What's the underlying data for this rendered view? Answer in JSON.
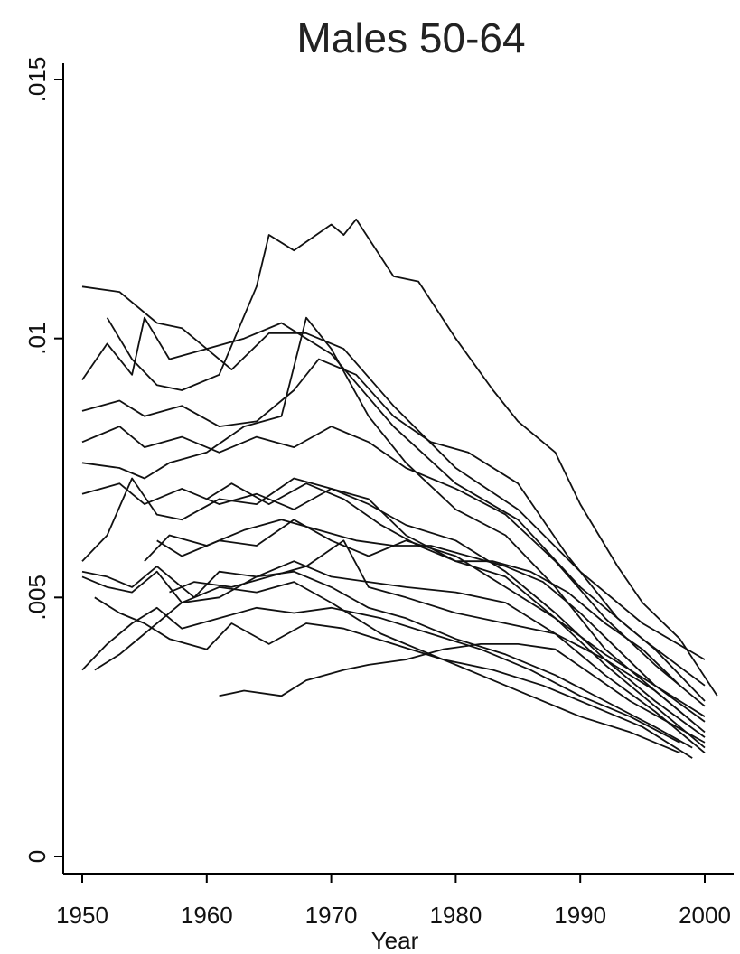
{
  "chart_data": {
    "type": "line",
    "title": "Males 50-64",
    "xlabel": "Year",
    "ylabel": "",
    "xlim": [
      1950,
      2000
    ],
    "ylim": [
      0,
      0.015
    ],
    "grid": false,
    "legend": "none",
    "line_color": "#111111",
    "x_ticks": [
      {
        "value": 1950,
        "label": "1950"
      },
      {
        "value": 1960,
        "label": "1960"
      },
      {
        "value": 1970,
        "label": "1970"
      },
      {
        "value": 1980,
        "label": "1980"
      },
      {
        "value": 1990,
        "label": "1990"
      },
      {
        "value": 2000,
        "label": "2000"
      }
    ],
    "y_ticks": [
      {
        "value": 0,
        "label": "0"
      },
      {
        "value": 0.005,
        "label": ".005"
      },
      {
        "value": 0.01,
        "label": ".01"
      },
      {
        "value": 0.015,
        "label": ".015"
      }
    ],
    "series": [
      {
        "points": [
          [
            1950,
            0.011
          ],
          [
            1953,
            0.0109
          ],
          [
            1956,
            0.0103
          ],
          [
            1958,
            0.0102
          ],
          [
            1962,
            0.0094
          ],
          [
            1965,
            0.0101
          ],
          [
            1968,
            0.0101
          ],
          [
            1971,
            0.0098
          ],
          [
            1975,
            0.0087
          ],
          [
            1980,
            0.0075
          ],
          [
            1985,
            0.0067
          ],
          [
            1990,
            0.0055
          ],
          [
            1995,
            0.0045
          ],
          [
            2000,
            0.0038
          ]
        ]
      },
      {
        "points": [
          [
            1950,
            0.0092
          ],
          [
            1952,
            0.0099
          ],
          [
            1954,
            0.0093
          ],
          [
            1955,
            0.0104
          ],
          [
            1957,
            0.0096
          ],
          [
            1960,
            0.0098
          ],
          [
            1963,
            0.01
          ],
          [
            1966,
            0.0103
          ],
          [
            1968,
            0.01
          ],
          [
            1970,
            0.0097
          ],
          [
            1975,
            0.0083
          ],
          [
            1980,
            0.0072
          ],
          [
            1985,
            0.0065
          ],
          [
            1990,
            0.0052
          ],
          [
            1995,
            0.0042
          ],
          [
            2000,
            0.0033
          ]
        ]
      },
      {
        "points": [
          [
            1952,
            0.0104
          ],
          [
            1954,
            0.0096
          ],
          [
            1956,
            0.0091
          ],
          [
            1958,
            0.009
          ],
          [
            1961,
            0.0093
          ],
          [
            1964,
            0.011
          ],
          [
            1965,
            0.012
          ],
          [
            1967,
            0.0117
          ],
          [
            1970,
            0.0122
          ],
          [
            1971,
            0.012
          ],
          [
            1972,
            0.0123
          ],
          [
            1975,
            0.0112
          ],
          [
            1977,
            0.0111
          ],
          [
            1980,
            0.01
          ],
          [
            1983,
            0.009
          ],
          [
            1985,
            0.0084
          ],
          [
            1988,
            0.0078
          ],
          [
            1990,
            0.0068
          ],
          [
            1993,
            0.0056
          ],
          [
            1995,
            0.0049
          ],
          [
            1998,
            0.0042
          ],
          [
            2001,
            0.0031
          ]
        ]
      },
      {
        "points": [
          [
            1950,
            0.0086
          ],
          [
            1953,
            0.0088
          ],
          [
            1955,
            0.0085
          ],
          [
            1958,
            0.0087
          ],
          [
            1961,
            0.0083
          ],
          [
            1964,
            0.0084
          ],
          [
            1967,
            0.009
          ],
          [
            1969,
            0.0096
          ],
          [
            1972,
            0.0093
          ],
          [
            1975,
            0.0085
          ],
          [
            1978,
            0.008
          ],
          [
            1981,
            0.0078
          ],
          [
            1985,
            0.0072
          ],
          [
            1989,
            0.0058
          ],
          [
            1993,
            0.0046
          ],
          [
            1996,
            0.004
          ],
          [
            2000,
            0.003
          ]
        ]
      },
      {
        "points": [
          [
            1950,
            0.008
          ],
          [
            1953,
            0.0083
          ],
          [
            1955,
            0.0079
          ],
          [
            1958,
            0.0081
          ],
          [
            1961,
            0.0078
          ],
          [
            1964,
            0.0081
          ],
          [
            1967,
            0.0079
          ],
          [
            1970,
            0.0083
          ],
          [
            1973,
            0.008
          ],
          [
            1976,
            0.0075
          ],
          [
            1980,
            0.0071
          ],
          [
            1984,
            0.0066
          ],
          [
            1988,
            0.0057
          ],
          [
            1992,
            0.0046
          ],
          [
            1996,
            0.0037
          ],
          [
            2000,
            0.0029
          ]
        ]
      },
      {
        "points": [
          [
            1950,
            0.0076
          ],
          [
            1953,
            0.0075
          ],
          [
            1955,
            0.0073
          ],
          [
            1957,
            0.0076
          ],
          [
            1960,
            0.0078
          ],
          [
            1963,
            0.0083
          ],
          [
            1966,
            0.0085
          ],
          [
            1968,
            0.0104
          ],
          [
            1970,
            0.0098
          ],
          [
            1973,
            0.0085
          ],
          [
            1976,
            0.0076
          ],
          [
            1980,
            0.0067
          ],
          [
            1984,
            0.0062
          ],
          [
            1988,
            0.0052
          ],
          [
            1992,
            0.004
          ],
          [
            1996,
            0.0032
          ],
          [
            2000,
            0.0024
          ]
        ]
      },
      {
        "points": [
          [
            1950,
            0.007
          ],
          [
            1953,
            0.0072
          ],
          [
            1955,
            0.0068
          ],
          [
            1958,
            0.0071
          ],
          [
            1961,
            0.0068
          ],
          [
            1964,
            0.007
          ],
          [
            1967,
            0.0067
          ],
          [
            1970,
            0.0071
          ],
          [
            1973,
            0.0068
          ],
          [
            1976,
            0.0064
          ],
          [
            1980,
            0.0061
          ],
          [
            1984,
            0.0055
          ],
          [
            1988,
            0.0047
          ],
          [
            1992,
            0.0038
          ],
          [
            1996,
            0.003
          ],
          [
            2000,
            0.0023
          ]
        ]
      },
      {
        "points": [
          [
            1950,
            0.0057
          ],
          [
            1952,
            0.0062
          ],
          [
            1954,
            0.0073
          ],
          [
            1956,
            0.0066
          ],
          [
            1958,
            0.0065
          ],
          [
            1961,
            0.0069
          ],
          [
            1964,
            0.0068
          ],
          [
            1967,
            0.0073
          ],
          [
            1970,
            0.0071
          ],
          [
            1973,
            0.0069
          ],
          [
            1976,
            0.0062
          ],
          [
            1980,
            0.0057
          ],
          [
            1984,
            0.0054
          ],
          [
            1988,
            0.0046
          ],
          [
            1992,
            0.0037
          ],
          [
            1996,
            0.0029
          ],
          [
            2000,
            0.0021
          ]
        ]
      },
      {
        "points": [
          [
            1950,
            0.0055
          ],
          [
            1952,
            0.0054
          ],
          [
            1954,
            0.0052
          ],
          [
            1956,
            0.0056
          ],
          [
            1959,
            0.005
          ],
          [
            1961,
            0.0055
          ],
          [
            1964,
            0.0054
          ],
          [
            1967,
            0.0057
          ],
          [
            1970,
            0.0054
          ],
          [
            1973,
            0.0053
          ],
          [
            1976,
            0.0052
          ],
          [
            1980,
            0.0051
          ],
          [
            1984,
            0.0049
          ],
          [
            1988,
            0.0043
          ],
          [
            1992,
            0.0035
          ],
          [
            1996,
            0.0028
          ],
          [
            2000,
            0.002
          ]
        ]
      },
      {
        "points": [
          [
            1950,
            0.0054
          ],
          [
            1952,
            0.0052
          ],
          [
            1954,
            0.0051
          ],
          [
            1956,
            0.0055
          ],
          [
            1958,
            0.0049
          ],
          [
            1961,
            0.0052
          ],
          [
            1964,
            0.0051
          ],
          [
            1967,
            0.0053
          ],
          [
            1970,
            0.0049
          ],
          [
            1974,
            0.0043
          ],
          [
            1978,
            0.0039
          ],
          [
            1982,
            0.0035
          ],
          [
            1986,
            0.0031
          ],
          [
            1990,
            0.0027
          ],
          [
            1994,
            0.0024
          ],
          [
            1998,
            0.002
          ]
        ]
      },
      {
        "points": [
          [
            1951,
            0.0036
          ],
          [
            1953,
            0.0039
          ],
          [
            1955,
            0.0043
          ],
          [
            1958,
            0.0049
          ],
          [
            1961,
            0.005
          ],
          [
            1964,
            0.0054
          ],
          [
            1967,
            0.0055
          ],
          [
            1970,
            0.0052
          ],
          [
            1973,
            0.0048
          ],
          [
            1976,
            0.0046
          ],
          [
            1980,
            0.0042
          ],
          [
            1984,
            0.0039
          ],
          [
            1988,
            0.0035
          ],
          [
            1992,
            0.003
          ],
          [
            1996,
            0.0025
          ],
          [
            1999,
            0.0021
          ]
        ]
      },
      {
        "points": [
          [
            1950,
            0.0036
          ],
          [
            1952,
            0.0041
          ],
          [
            1954,
            0.0045
          ],
          [
            1956,
            0.0048
          ],
          [
            1958,
            0.0044
          ],
          [
            1961,
            0.0046
          ],
          [
            1964,
            0.0048
          ],
          [
            1967,
            0.0047
          ],
          [
            1970,
            0.0048
          ],
          [
            1974,
            0.0046
          ],
          [
            1978,
            0.0043
          ],
          [
            1982,
            0.004
          ],
          [
            1986,
            0.0036
          ],
          [
            1990,
            0.0031
          ],
          [
            1994,
            0.0027
          ],
          [
            1998,
            0.0022
          ]
        ]
      },
      {
        "points": [
          [
            1951,
            0.005
          ],
          [
            1953,
            0.0047
          ],
          [
            1955,
            0.0045
          ],
          [
            1957,
            0.0042
          ],
          [
            1960,
            0.004
          ],
          [
            1962,
            0.0045
          ],
          [
            1965,
            0.0041
          ],
          [
            1968,
            0.0045
          ],
          [
            1971,
            0.0044
          ],
          [
            1975,
            0.0041
          ],
          [
            1979,
            0.0038
          ],
          [
            1983,
            0.0036
          ],
          [
            1987,
            0.0033
          ],
          [
            1991,
            0.0029
          ],
          [
            1995,
            0.0025
          ],
          [
            1999,
            0.0019
          ]
        ]
      },
      {
        "points": [
          [
            1961,
            0.0031
          ],
          [
            1963,
            0.0032
          ],
          [
            1966,
            0.0031
          ],
          [
            1968,
            0.0034
          ],
          [
            1971,
            0.0036
          ],
          [
            1973,
            0.0037
          ],
          [
            1976,
            0.0038
          ],
          [
            1979,
            0.004
          ],
          [
            1982,
            0.0041
          ],
          [
            1985,
            0.0041
          ],
          [
            1988,
            0.004
          ],
          [
            1991,
            0.0035
          ],
          [
            1994,
            0.003
          ],
          [
            1997,
            0.0026
          ],
          [
            2000,
            0.0022
          ]
        ]
      },
      {
        "points": [
          [
            1955,
            0.0057
          ],
          [
            1957,
            0.0062
          ],
          [
            1960,
            0.006
          ],
          [
            1963,
            0.0063
          ],
          [
            1966,
            0.0065
          ],
          [
            1969,
            0.0063
          ],
          [
            1972,
            0.0061
          ],
          [
            1975,
            0.006
          ],
          [
            1978,
            0.006
          ],
          [
            1981,
            0.0058
          ],
          [
            1984,
            0.0056
          ],
          [
            1987,
            0.0053
          ],
          [
            1990,
            0.0047
          ],
          [
            1993,
            0.004
          ],
          [
            1996,
            0.0033
          ],
          [
            2000,
            0.0026
          ]
        ]
      },
      {
        "points": [
          [
            1956,
            0.0061
          ],
          [
            1958,
            0.0058
          ],
          [
            1961,
            0.0061
          ],
          [
            1964,
            0.006
          ],
          [
            1967,
            0.0065
          ],
          [
            1970,
            0.0061
          ],
          [
            1973,
            0.0058
          ],
          [
            1976,
            0.0061
          ],
          [
            1980,
            0.0058
          ],
          [
            1984,
            0.0052
          ],
          [
            1988,
            0.0046
          ],
          [
            1992,
            0.0039
          ],
          [
            1996,
            0.0033
          ],
          [
            2000,
            0.0027
          ]
        ]
      },
      {
        "points": [
          [
            1957,
            0.0051
          ],
          [
            1959,
            0.0053
          ],
          [
            1962,
            0.0052
          ],
          [
            1965,
            0.0054
          ],
          [
            1968,
            0.0056
          ],
          [
            1971,
            0.0061
          ],
          [
            1973,
            0.0052
          ],
          [
            1976,
            0.005
          ],
          [
            1980,
            0.0047
          ],
          [
            1984,
            0.0045
          ],
          [
            1988,
            0.0043
          ],
          [
            1992,
            0.0038
          ],
          [
            1996,
            0.0032
          ],
          [
            1999,
            0.0026
          ]
        ]
      },
      {
        "points": [
          [
            1960,
            0.0069
          ],
          [
            1962,
            0.0072
          ],
          [
            1965,
            0.0068
          ],
          [
            1968,
            0.0072
          ],
          [
            1971,
            0.0069
          ],
          [
            1974,
            0.0064
          ],
          [
            1977,
            0.006
          ],
          [
            1980,
            0.0057
          ],
          [
            1983,
            0.0057
          ],
          [
            1986,
            0.0055
          ],
          [
            1989,
            0.0051
          ],
          [
            1992,
            0.0045
          ],
          [
            1995,
            0.004
          ],
          [
            1998,
            0.0033
          ]
        ]
      }
    ]
  }
}
